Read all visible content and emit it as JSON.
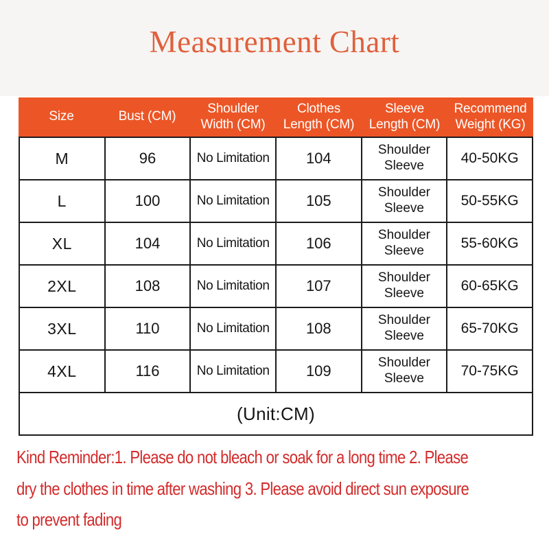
{
  "page": {
    "title": "Measurement Chart",
    "reminder_lines": [
      "Kind Reminder:1. Please do not bleach or soak for a long time 2. Please",
      "dry the clothes in time after washing 3. Please avoid direct sun exposure",
      "to prevent fading"
    ]
  },
  "colors": {
    "accent_orange": "#EC5626",
    "title_orange": "#E0603C",
    "reminder_red": "#D32B2B",
    "table_border": "#1B1B1B",
    "header_text": "#FFFFFF",
    "body_text": "#151515",
    "top_band": "#F6F5F3"
  },
  "chart_data": {
    "type": "table",
    "title": "Measurement Chart",
    "columns": [
      "Size",
      "Bust (CM)",
      "Shoulder Width (CM)",
      "Clothes Length (CM)",
      "Sleeve Length (CM)",
      "Recommend Weight (KG)"
    ],
    "rows": [
      [
        "M",
        "96",
        "No Limitation",
        "104",
        "Shoulder Sleeve",
        "40-50KG"
      ],
      [
        "L",
        "100",
        "No Limitation",
        "105",
        "Shoulder Sleeve",
        "50-55KG"
      ],
      [
        "XL",
        "104",
        "No Limitation",
        "106",
        "Shoulder Sleeve",
        "55-60KG"
      ],
      [
        "2XL",
        "108",
        "No Limitation",
        "107",
        "Shoulder Sleeve",
        "60-65KG"
      ],
      [
        "3XL",
        "110",
        "No Limitation",
        "108",
        "Shoulder Sleeve",
        "65-70KG"
      ],
      [
        "4XL",
        "116",
        "No Limitation",
        "109",
        "Shoulder Sleeve",
        "70-75KG"
      ]
    ],
    "footer_note": "(Unit:CM)"
  }
}
